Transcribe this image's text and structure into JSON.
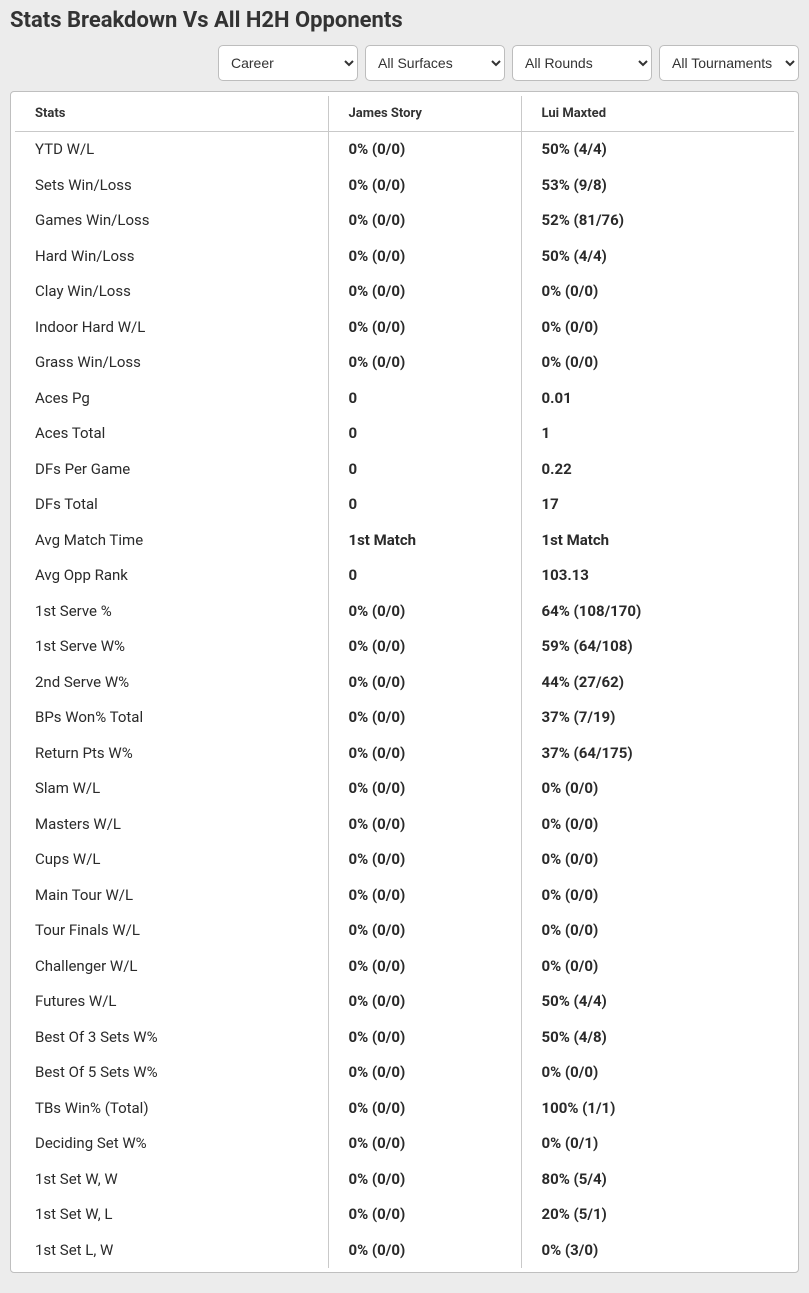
{
  "title": "Stats Breakdown Vs All H2H Opponents",
  "filters": {
    "career": {
      "selected": "Career",
      "options": [
        "Career"
      ]
    },
    "surface": {
      "selected": "All Surfaces",
      "options": [
        "All Surfaces"
      ]
    },
    "round": {
      "selected": "All Rounds",
      "options": [
        "All Rounds"
      ]
    },
    "tournament": {
      "selected": "All Tournaments",
      "options": [
        "All Tournaments"
      ]
    }
  },
  "table": {
    "columns": [
      "Stats",
      "James Story",
      "Lui Maxted"
    ],
    "rows": [
      [
        "YTD W/L",
        "0% (0/0)",
        "50% (4/4)"
      ],
      [
        "Sets Win/Loss",
        "0% (0/0)",
        "53% (9/8)"
      ],
      [
        "Games Win/Loss",
        "0% (0/0)",
        "52% (81/76)"
      ],
      [
        "Hard Win/Loss",
        "0% (0/0)",
        "50% (4/4)"
      ],
      [
        "Clay Win/Loss",
        "0% (0/0)",
        "0% (0/0)"
      ],
      [
        "Indoor Hard W/L",
        "0% (0/0)",
        "0% (0/0)"
      ],
      [
        "Grass Win/Loss",
        "0% (0/0)",
        "0% (0/0)"
      ],
      [
        "Aces Pg",
        "0",
        "0.01"
      ],
      [
        "Aces Total",
        "0",
        "1"
      ],
      [
        "DFs Per Game",
        "0",
        "0.22"
      ],
      [
        "DFs Total",
        "0",
        "17"
      ],
      [
        "Avg Match Time",
        "1st Match",
        "1st Match"
      ],
      [
        "Avg Opp Rank",
        "0",
        "103.13"
      ],
      [
        "1st Serve %",
        "0% (0/0)",
        "64% (108/170)"
      ],
      [
        "1st Serve W%",
        "0% (0/0)",
        "59% (64/108)"
      ],
      [
        "2nd Serve W%",
        "0% (0/0)",
        "44% (27/62)"
      ],
      [
        "BPs Won% Total",
        "0% (0/0)",
        "37% (7/19)"
      ],
      [
        "Return Pts W%",
        "0% (0/0)",
        "37% (64/175)"
      ],
      [
        "Slam W/L",
        "0% (0/0)",
        "0% (0/0)"
      ],
      [
        "Masters W/L",
        "0% (0/0)",
        "0% (0/0)"
      ],
      [
        "Cups W/L",
        "0% (0/0)",
        "0% (0/0)"
      ],
      [
        "Main Tour W/L",
        "0% (0/0)",
        "0% (0/0)"
      ],
      [
        "Tour Finals W/L",
        "0% (0/0)",
        "0% (0/0)"
      ],
      [
        "Challenger W/L",
        "0% (0/0)",
        "0% (0/0)"
      ],
      [
        "Futures W/L",
        "0% (0/0)",
        "50% (4/4)"
      ],
      [
        "Best Of 3 Sets W%",
        "0% (0/0)",
        "50% (4/8)"
      ],
      [
        "Best Of 5 Sets W%",
        "0% (0/0)",
        "0% (0/0)"
      ],
      [
        "TBs Win% (Total)",
        "0% (0/0)",
        "100% (1/1)"
      ],
      [
        "Deciding Set W%",
        "0% (0/0)",
        "0% (0/1)"
      ],
      [
        "1st Set W, W",
        "0% (0/0)",
        "80% (5/4)"
      ],
      [
        "1st Set W, L",
        "0% (0/0)",
        "20% (5/1)"
      ],
      [
        "1st Set L, W",
        "0% (0/0)",
        "0% (3/0)"
      ]
    ]
  }
}
